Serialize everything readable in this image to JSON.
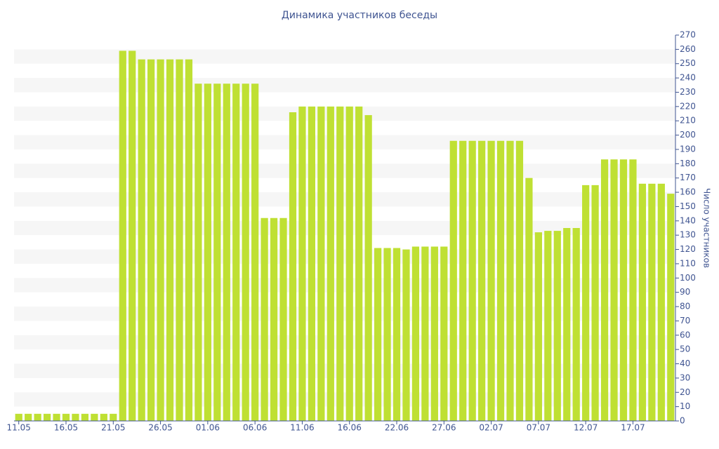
{
  "chart_data": {
    "type": "bar",
    "title": "Динамика участников беседы",
    "y_label": "Число участников",
    "categories": [
      "11.05",
      null,
      null,
      null,
      null,
      "16.05",
      null,
      null,
      null,
      null,
      "21.05",
      null,
      null,
      null,
      null,
      "26.05",
      null,
      null,
      null,
      null,
      "01.06",
      null,
      null,
      null,
      null,
      "06.06",
      null,
      null,
      null,
      null,
      "11.06",
      null,
      null,
      null,
      null,
      "16.06",
      null,
      null,
      null,
      null,
      "22.06",
      null,
      null,
      null,
      null,
      "27.06",
      null,
      null,
      null,
      null,
      "02.07",
      null,
      null,
      null,
      null,
      "07.07",
      null,
      null,
      null,
      null,
      "12.07",
      null,
      null,
      null,
      null,
      "17.07",
      null,
      null,
      null,
      null
    ],
    "values": [
      5,
      5,
      5,
      5,
      5,
      5,
      5,
      5,
      5,
      5,
      5,
      259,
      259,
      253,
      253,
      253,
      253,
      253,
      253,
      236,
      236,
      236,
      236,
      236,
      236,
      236,
      142,
      142,
      142,
      216,
      220,
      220,
      220,
      220,
      220,
      220,
      220,
      214,
      121,
      121,
      121,
      120,
      122,
      122,
      122,
      122,
      196,
      196,
      196,
      196,
      196,
      196,
      196,
      196,
      170,
      132,
      133,
      133,
      135,
      135,
      165,
      165,
      183,
      183,
      183,
      183,
      166,
      166,
      166,
      159
    ],
    "color": "#bfe033",
    "ylim": [
      0,
      270
    ],
    "yticks": [
      0,
      10,
      20,
      30,
      40,
      50,
      60,
      70,
      80,
      90,
      100,
      110,
      120,
      130,
      140,
      150,
      160,
      170,
      180,
      190,
      200,
      210,
      220,
      230,
      240,
      250,
      260,
      270
    ],
    "grid": true
  }
}
